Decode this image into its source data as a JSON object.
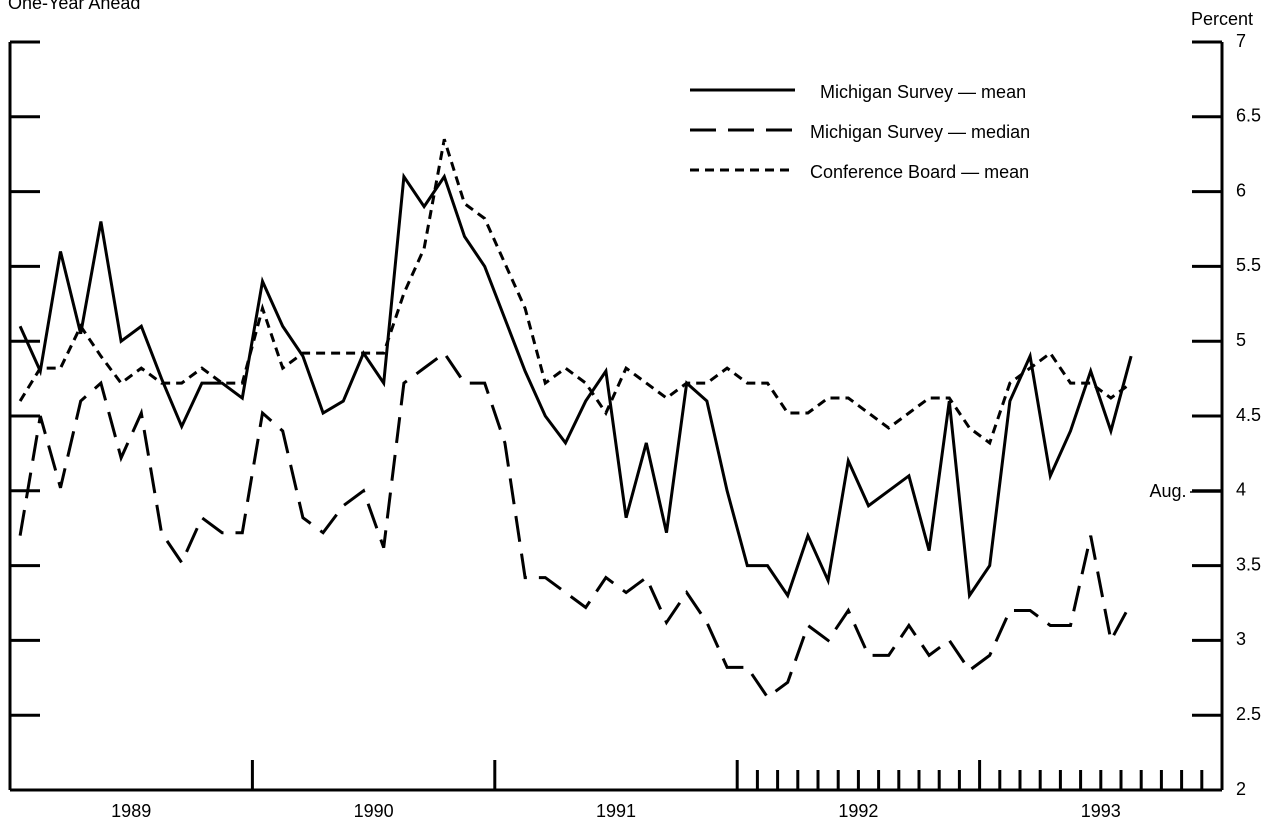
{
  "chart_data": {
    "type": "line",
    "subtitle": "One-Year Ahead",
    "y_axis_label": "Percent",
    "annotation": "Aug.",
    "x": [
      1,
      2,
      3,
      4,
      5,
      6,
      7,
      8,
      9,
      10,
      11,
      12,
      13,
      14,
      15,
      16,
      17,
      18,
      19,
      20,
      21,
      22,
      23,
      24,
      25,
      26,
      27,
      28,
      29,
      30,
      31,
      32,
      33,
      34,
      35,
      36,
      37,
      38,
      39,
      40,
      41,
      42,
      43,
      44,
      45,
      46,
      47,
      48,
      49,
      50,
      51,
      52,
      53,
      54,
      55,
      56
    ],
    "series": [
      {
        "name": "Michigan Survey — mean",
        "color": "#000000",
        "dash": "solid",
        "values": [
          5.1,
          4.8,
          5.6,
          5.05,
          5.8,
          5.0,
          5.1,
          4.75,
          4.43,
          4.72,
          4.72,
          4.62,
          5.4,
          5.1,
          4.9,
          4.52,
          4.6,
          4.92,
          4.72,
          6.1,
          5.9,
          6.1,
          5.7,
          5.5,
          5.15,
          4.8,
          4.5,
          4.32,
          4.6,
          4.8,
          3.82,
          4.32,
          3.72,
          4.72,
          4.6,
          4.0,
          3.5,
          3.5,
          3.3,
          3.7,
          3.4,
          4.2,
          3.9,
          4.0,
          4.1,
          3.6,
          4.6,
          3.3,
          3.5,
          4.6,
          4.9,
          4.1,
          4.4,
          4.8,
          4.4,
          4.9
        ]
      },
      {
        "name": "Michigan Survey — median",
        "color": "#000000",
        "dash": "dashed",
        "values": [
          3.7,
          4.5,
          4.02,
          4.6,
          4.72,
          4.22,
          4.52,
          3.72,
          3.52,
          3.82,
          3.72,
          3.72,
          4.52,
          4.4,
          3.82,
          3.72,
          3.9,
          4.0,
          3.62,
          4.72,
          4.82,
          4.92,
          4.72,
          4.72,
          4.32,
          3.42,
          3.42,
          3.32,
          3.22,
          3.42,
          3.32,
          3.42,
          3.12,
          3.32,
          3.12,
          2.82,
          2.82,
          2.62,
          2.72,
          3.1,
          3.0,
          3.2,
          2.9,
          2.9,
          3.1,
          2.9,
          3.0,
          2.8,
          2.9,
          3.2,
          3.2,
          3.1,
          3.1,
          3.7,
          3.0,
          3.25
        ]
      },
      {
        "name": "Conference Board — mean",
        "color": "#000000",
        "dash": "dotted",
        "values": [
          4.6,
          4.82,
          4.82,
          5.1,
          4.9,
          4.72,
          4.82,
          4.72,
          4.72,
          4.82,
          4.72,
          4.72,
          5.22,
          4.82,
          4.92,
          4.92,
          4.92,
          4.92,
          4.92,
          5.32,
          5.62,
          6.35,
          5.92,
          5.82,
          5.52,
          5.22,
          4.72,
          4.82,
          4.72,
          4.52,
          4.82,
          4.72,
          4.62,
          4.72,
          4.72,
          4.82,
          4.72,
          4.72,
          4.52,
          4.52,
          4.62,
          4.62,
          4.52,
          4.42,
          4.52,
          4.62,
          4.62,
          4.42,
          4.32,
          4.72,
          4.82,
          4.92,
          4.72,
          4.72,
          4.62,
          4.72
        ]
      }
    ],
    "xlim": [
      0.5,
      60.5
    ],
    "xticks": [
      12.5,
      24.5,
      36.5,
      48.5
    ],
    "minor_xticks": [
      37.5,
      38.5,
      39.5,
      40.5,
      41.5,
      42.5,
      43.5,
      44.5,
      45.5,
      46.5,
      47.5,
      49.5,
      50.5,
      51.5,
      52.5,
      53.5,
      54.5,
      55.5,
      56.5,
      57.5,
      58.5,
      59.5
    ],
    "year_labels": [
      {
        "value": 6.5,
        "label": "1989"
      },
      {
        "value": 18.5,
        "label": "1990"
      },
      {
        "value": 30.5,
        "label": "1991"
      },
      {
        "value": 42.5,
        "label": "1992"
      },
      {
        "value": 54.5,
        "label": "1993"
      }
    ],
    "ylim": [
      2,
      7
    ],
    "yticks": [
      2,
      2.5,
      3,
      3.5,
      4,
      4.5,
      5,
      5.5,
      6,
      6.5,
      7
    ],
    "legend": "upper right"
  }
}
